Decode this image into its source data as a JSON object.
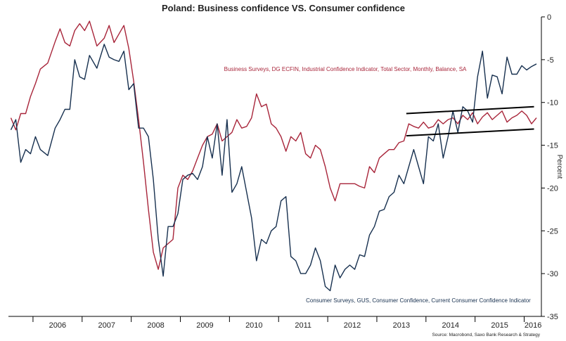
{
  "chart_data": {
    "type": "line",
    "title": "Poland: Business confidence VS. Consumer confidence",
    "xlabel": "",
    "ylabel": "Percent",
    "ylim": [
      -35,
      0
    ],
    "y_ticks": [
      0,
      -5,
      -10,
      -15,
      -20,
      -25,
      -30,
      -35
    ],
    "x_ticks": [
      "2006",
      "2007",
      "2008",
      "2009",
      "2010",
      "2011",
      "2012",
      "2013",
      "2014",
      "2015",
      "2016"
    ],
    "x_range": [
      2005.5,
      2016.35
    ],
    "grid": false,
    "source": "Source: Macrobond, Saxo Bank Research & Strategy",
    "colors": {
      "business": "#a8253a",
      "consumer": "#17304f",
      "trend": "#000000"
    },
    "series": [
      {
        "name": "Business Surveys, DG ECFIN, Industrial Confidence Indicator, Total Sector, Monthly, Balance, SA",
        "x": [
          2005.55,
          2005.65,
          2005.75,
          2005.85,
          2005.95,
          2006.05,
          2006.15,
          2006.3,
          2006.45,
          2006.55,
          2006.65,
          2006.75,
          2006.85,
          2006.95,
          2007.05,
          2007.15,
          2007.3,
          2007.45,
          2007.55,
          2007.65,
          2007.75,
          2007.85,
          2007.95,
          2008.05,
          2008.15,
          2008.25,
          2008.35,
          2008.45,
          2008.55,
          2008.65,
          2008.75,
          2008.85,
          2008.95,
          2009.05,
          2009.15,
          2009.25,
          2009.35,
          2009.45,
          2009.55,
          2009.65,
          2009.75,
          2009.85,
          2009.95,
          2010.05,
          2010.15,
          2010.25,
          2010.35,
          2010.45,
          2010.55,
          2010.65,
          2010.75,
          2010.85,
          2010.95,
          2011.05,
          2011.15,
          2011.25,
          2011.35,
          2011.45,
          2011.55,
          2011.65,
          2011.75,
          2011.85,
          2011.95,
          2012.05,
          2012.15,
          2012.25,
          2012.35,
          2012.45,
          2012.55,
          2012.65,
          2012.75,
          2012.85,
          2012.95,
          2013.05,
          2013.15,
          2013.25,
          2013.35,
          2013.45,
          2013.55,
          2013.65,
          2013.75,
          2013.85,
          2013.95,
          2014.05,
          2014.15,
          2014.25,
          2014.35,
          2014.45,
          2014.55,
          2014.65,
          2014.75,
          2014.85,
          2014.95,
          2015.05,
          2015.15,
          2015.25,
          2015.35,
          2015.45,
          2015.55,
          2015.65,
          2015.75,
          2015.85,
          2015.95,
          2016.05,
          2016.15,
          2016.25
        ],
        "values": [
          -11.8,
          -13.2,
          -11.3,
          -11.3,
          -9.3,
          -7.8,
          -6.1,
          -5.4,
          -2.9,
          -1.4,
          -3.0,
          -3.4,
          -1.6,
          -0.8,
          -1.6,
          -0.5,
          -3.4,
          -2.5,
          -1.0,
          -3.0,
          -2.0,
          -1.0,
          -3.7,
          -7.5,
          -12.0,
          -17.0,
          -22.5,
          -27.5,
          -29.5,
          -27.0,
          -26.5,
          -26.0,
          -20.0,
          -18.5,
          -19.0,
          -18.0,
          -16.5,
          -15.0,
          -14.0,
          -13.7,
          -12.5,
          -14.5,
          -14.0,
          -13.5,
          -12.0,
          -13.0,
          -12.8,
          -11.8,
          -9.0,
          -10.5,
          -10.2,
          -12.5,
          -13.0,
          -14.0,
          -15.7,
          -14.0,
          -14.5,
          -13.5,
          -16.0,
          -16.5,
          -15.0,
          -15.5,
          -17.5,
          -20.0,
          -21.5,
          -19.5,
          -19.5,
          -19.5,
          -19.5,
          -19.8,
          -20.0,
          -17.5,
          -18.2,
          -16.5,
          -16.0,
          -15.5,
          -15.5,
          -14.7,
          -14.5,
          -12.5,
          -12.8,
          -13.0,
          -12.3,
          -13.0,
          -12.8,
          -12.0,
          -12.5,
          -12.0,
          -11.8,
          -12.5,
          -11.5,
          -12.0,
          -11.2,
          -12.5,
          -11.7,
          -11.2,
          -12.0,
          -11.5,
          -11.0,
          -12.3,
          -11.8,
          -11.5,
          -11.0,
          -11.5,
          -12.5,
          -11.8
        ]
      },
      {
        "name": "Consumer Surveys, GUS, Consumer Confidence, Current Consumer Confidence Indicator",
        "x": [
          2005.55,
          2005.65,
          2005.75,
          2005.85,
          2005.95,
          2006.05,
          2006.15,
          2006.3,
          2006.45,
          2006.55,
          2006.65,
          2006.75,
          2006.85,
          2006.95,
          2007.05,
          2007.15,
          2007.3,
          2007.45,
          2007.55,
          2007.65,
          2007.75,
          2007.85,
          2007.95,
          2008.05,
          2008.15,
          2008.25,
          2008.35,
          2008.45,
          2008.55,
          2008.65,
          2008.75,
          2008.85,
          2008.95,
          2009.05,
          2009.15,
          2009.25,
          2009.35,
          2009.45,
          2009.55,
          2009.65,
          2009.75,
          2009.85,
          2009.95,
          2010.05,
          2010.15,
          2010.25,
          2010.35,
          2010.45,
          2010.55,
          2010.65,
          2010.75,
          2010.85,
          2010.95,
          2011.05,
          2011.15,
          2011.25,
          2011.35,
          2011.45,
          2011.55,
          2011.65,
          2011.75,
          2011.85,
          2011.95,
          2012.05,
          2012.15,
          2012.25,
          2012.35,
          2012.45,
          2012.55,
          2012.65,
          2012.75,
          2012.85,
          2012.95,
          2013.05,
          2013.15,
          2013.25,
          2013.35,
          2013.45,
          2013.55,
          2013.65,
          2013.75,
          2013.85,
          2013.95,
          2014.05,
          2014.15,
          2014.25,
          2014.35,
          2014.45,
          2014.55,
          2014.65,
          2014.75,
          2014.85,
          2014.95,
          2015.05,
          2015.15,
          2015.25,
          2015.35,
          2015.45,
          2015.55,
          2015.65,
          2015.75,
          2015.85,
          2015.95,
          2016.05,
          2016.15,
          2016.25
        ],
        "values": [
          -13.2,
          -12.0,
          -17.0,
          -15.5,
          -16.0,
          -14.0,
          -15.5,
          -16.2,
          -13.0,
          -12.0,
          -10.8,
          -10.8,
          -5.0,
          -7.0,
          -7.3,
          -4.5,
          -6.0,
          -3.2,
          -4.7,
          -5.0,
          -5.2,
          -4.0,
          -8.5,
          -7.8,
          -13.0,
          -13.0,
          -14.0,
          -19.0,
          -26.0,
          -30.3,
          -24.5,
          -24.5,
          -23.0,
          -19.0,
          -18.5,
          -18.3,
          -19.0,
          -17.5,
          -14.0,
          -16.5,
          -12.5,
          -18.5,
          -12.0,
          -20.5,
          -19.5,
          -17.5,
          -20.5,
          -23.5,
          -28.5,
          -26.0,
          -26.5,
          -25.0,
          -24.5,
          -21.5,
          -21.0,
          -28.0,
          -28.5,
          -30.0,
          -30.0,
          -29.0,
          -27.0,
          -28.5,
          -31.5,
          -32.0,
          -29.0,
          -30.5,
          -29.5,
          -29.0,
          -29.5,
          -27.8,
          -28.0,
          -25.5,
          -24.5,
          -22.7,
          -22.5,
          -21.0,
          -20.5,
          -18.5,
          -19.5,
          -17.5,
          -15.5,
          -17.5,
          -19.5,
          -14.0,
          -14.5,
          -12.5,
          -16.5,
          -14.0,
          -11.0,
          -13.5,
          -10.5,
          -11.0,
          -12.3,
          -7.0,
          -4.0,
          -9.5,
          -6.8,
          -7.0,
          -9.0,
          -4.7,
          -6.7,
          -6.7,
          -5.7,
          -6.2,
          -5.8,
          -5.5
        ]
      }
    ],
    "annotations": {
      "business_label": "Business Surveys, DG ECFIN, Industrial Confidence Indicator, Total Sector, Monthly, Balance, SA",
      "consumer_label": "Consumer Surveys, GUS, Consumer Confidence, Current Consumer Confidence Indicator"
    },
    "trend_lines": [
      {
        "name": "upper-trend-line",
        "x": [
          2013.6,
          2016.2
        ],
        "y": [
          -11.3,
          -10.5
        ]
      },
      {
        "name": "lower-trend-line",
        "x": [
          2013.6,
          2016.2
        ],
        "y": [
          -13.9,
          -13.1
        ]
      }
    ]
  }
}
